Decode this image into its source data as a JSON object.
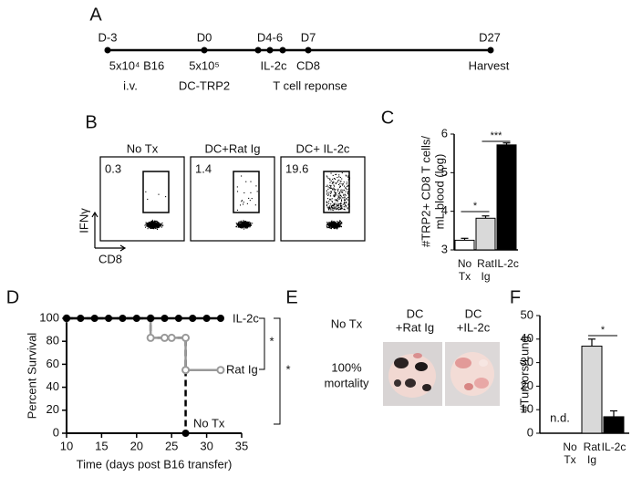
{
  "panel_a": {
    "label": "A",
    "events": [
      {
        "day": "D-3",
        "lines": [
          "5x10⁴ B16",
          "i.v."
        ]
      },
      {
        "day": "D0",
        "lines": [
          "5x10⁵",
          "DC-TRP2"
        ]
      },
      {
        "day": "D4-6",
        "lines": [
          "IL-2c"
        ]
      },
      {
        "day": "D7",
        "lines": [
          "CD8",
          "T cell reponse"
        ]
      },
      {
        "day": "D27",
        "lines": [
          "Harvest"
        ]
      }
    ]
  },
  "panel_b": {
    "label": "B",
    "ylabel": "IFNγ",
    "xlabel": "CD8",
    "plots": [
      {
        "title": "No Tx",
        "percent": 0.3
      },
      {
        "title": "DC+Rat Ig",
        "percent": 1.4
      },
      {
        "title": "DC+ IL-2c",
        "percent": 19.6
      }
    ]
  },
  "panel_e": {
    "label": "E",
    "control": {
      "title": "No Tx",
      "result": [
        "100%",
        "mortality"
      ]
    },
    "groups": [
      {
        "title": [
          "DC",
          "+Rat Ig"
        ]
      },
      {
        "title": [
          "DC",
          "+IL-2c"
        ]
      }
    ]
  },
  "chart_data": [
    {
      "type": "bar",
      "panel": "C",
      "ylabel": [
        "#TRP2+ CD8 T cells/",
        "mL blood (log)"
      ],
      "categories": [
        "No Tx",
        "Rat Ig",
        "IL-2c"
      ],
      "values": [
        3.25,
        3.82,
        5.72
      ],
      "errors": [
        0.05,
        0.06,
        0.05
      ],
      "colors": [
        "#ffffff",
        "#d9d9d9",
        "#000000"
      ],
      "ylim": [
        3,
        6
      ],
      "yticks": [
        3,
        4,
        5,
        6
      ],
      "significance": [
        {
          "from": 0,
          "to": 1,
          "label": "*"
        },
        {
          "from": 1,
          "to": 2,
          "label": "***"
        }
      ]
    },
    {
      "type": "line",
      "panel": "D",
      "xlabel": "Time (days post B16 transfer)",
      "ylabel": "Percent Survival",
      "xlim": [
        10,
        35
      ],
      "xticks": [
        10,
        15,
        20,
        25,
        30,
        35
      ],
      "ylim": [
        0,
        100
      ],
      "yticks": [
        0,
        20,
        40,
        60,
        80,
        100
      ],
      "series": [
        {
          "name": "No Tx",
          "color": "#000000",
          "dashed": true,
          "marker": "filled",
          "x": [
            10,
            22,
            22,
            24,
            25,
            27,
            27
          ],
          "values": [
            100,
            100,
            83,
            83,
            83,
            83,
            0
          ]
        },
        {
          "name": "Rat Ig",
          "color": "#999999",
          "dashed": false,
          "marker": "open",
          "x": [
            10,
            22,
            22,
            24,
            25,
            27,
            27,
            32
          ],
          "values": [
            100,
            100,
            83,
            83,
            83,
            83,
            55,
            55
          ]
        },
        {
          "name": "IL-2c",
          "color": "#000000",
          "dashed": false,
          "marker": "filled",
          "x": [
            10,
            12,
            14,
            16,
            18,
            20,
            22,
            24,
            26,
            28,
            30,
            32
          ],
          "values": [
            100,
            100,
            100,
            100,
            100,
            100,
            100,
            100,
            100,
            100,
            100,
            100
          ]
        }
      ],
      "significance": [
        {
          "label": "*"
        },
        {
          "label": "*"
        }
      ]
    },
    {
      "type": "bar",
      "panel": "F",
      "ylabel": "#Tumors/Lung",
      "categories": [
        "No Tx",
        "Rat Ig",
        "IL-2c"
      ],
      "values": [
        null,
        37,
        7
      ],
      "value_labels": [
        "n.d.",
        null,
        null
      ],
      "errors": [
        null,
        3,
        2.5
      ],
      "colors": [
        "#ffffff",
        "#d9d9d9",
        "#000000"
      ],
      "ylim": [
        0,
        50
      ],
      "yticks": [
        0,
        10,
        20,
        30,
        40,
        50
      ],
      "significance": [
        {
          "from": 1,
          "to": 2,
          "label": "*"
        }
      ]
    }
  ]
}
